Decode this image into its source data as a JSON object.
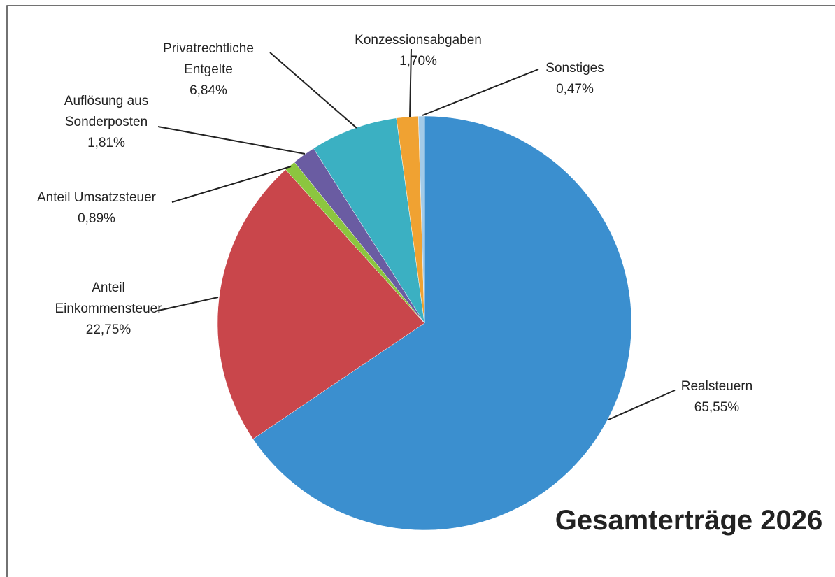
{
  "chart_data": {
    "type": "pie",
    "title": "Gesamterträge 2026",
    "categories": [
      "Realsteuern",
      "Anteil Einkommensteuer",
      "Anteil Umsatzsteuer",
      "Auflösung aus Sonderposten",
      "Privatrechtliche Entgelte",
      "Konzessionsabgaben",
      "Sonstiges"
    ],
    "values": [
      65.55,
      22.75,
      0.89,
      1.81,
      6.84,
      1.7,
      0.47
    ],
    "value_labels": [
      "65,55%",
      "22,75%",
      "0,89%",
      "1,81%",
      "6,84%",
      "1,70%",
      "0,47%"
    ],
    "colors": [
      "#3b8fcf",
      "#c9464b",
      "#8cc63f",
      "#6a5ca2",
      "#3bb0c2",
      "#f0a232",
      "#a3cbe8"
    ]
  }
}
